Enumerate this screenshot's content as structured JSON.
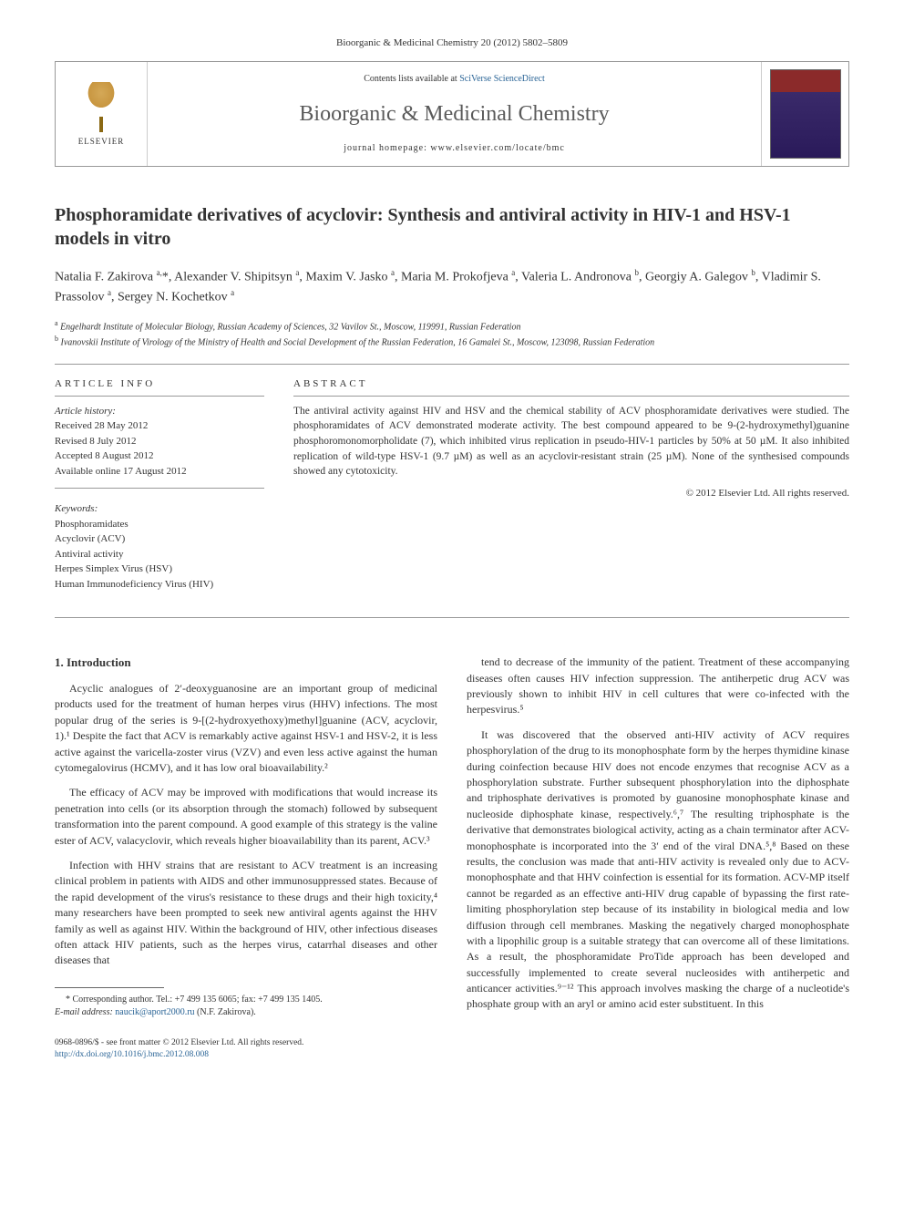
{
  "citation": "Bioorganic & Medicinal Chemistry 20 (2012) 5802–5809",
  "header": {
    "contents_prefix": "Contents lists available at ",
    "contents_link": "SciVerse ScienceDirect",
    "journal_name": "Bioorganic & Medicinal Chemistry",
    "homepage_prefix": "journal homepage: ",
    "homepage_url": "www.elsevier.com/locate/bmc",
    "publisher": "ELSEVIER"
  },
  "title": "Phosphoramidate derivatives of acyclovir: Synthesis and antiviral activity in HIV-1 and HSV-1 models in vitro",
  "authors_html": "Natalia F. Zakirova <sup>a,</sup>*, Alexander V. Shipitsyn <sup>a</sup>, Maxim V. Jasko <sup>a</sup>, Maria M. Prokofjeva <sup>a</sup>, Valeria L. Andronova <sup>b</sup>, Georgiy A. Galegov <sup>b</sup>, Vladimir S. Prassolov <sup>a</sup>, Sergey N. Kochetkov <sup>a</sup>",
  "affiliations": {
    "a": "Engelhardt Institute of Molecular Biology, Russian Academy of Sciences, 32 Vavilov St., Moscow, 119991, Russian Federation",
    "b": "Ivanovskii Institute of Virology of the Ministry of Health and Social Development of the Russian Federation, 16 Gamalei St., Moscow, 123098, Russian Federation"
  },
  "info": {
    "label": "ARTICLE INFO",
    "history_label": "Article history:",
    "received": "Received 28 May 2012",
    "revised": "Revised 8 July 2012",
    "accepted": "Accepted 8 August 2012",
    "online": "Available online 17 August 2012",
    "keywords_label": "Keywords:",
    "keywords": [
      "Phosphoramidates",
      "Acyclovir (ACV)",
      "Antiviral activity",
      "Herpes Simplex Virus (HSV)",
      "Human Immunodeficiency Virus (HIV)"
    ]
  },
  "abstract": {
    "label": "ABSTRACT",
    "text": "The antiviral activity against HIV and HSV and the chemical stability of ACV phosphoramidate derivatives were studied. The phosphoramidates of ACV demonstrated moderate activity. The best compound appeared to be 9-(2-hydroxymethyl)guanine phosphoromonomorpholidate (7), which inhibited virus replication in pseudo-HIV-1 particles by 50% at 50 µM. It also inhibited replication of wild-type HSV-1 (9.7 µM) as well as an acyclovir-resistant strain (25 µM). None of the synthesised compounds showed any cytotoxicity.",
    "copyright": "© 2012 Elsevier Ltd. All rights reserved."
  },
  "body": {
    "section_heading": "1. Introduction",
    "col1": [
      "Acyclic analogues of 2′-deoxyguanosine are an important group of medicinal products used for the treatment of human herpes virus (HHV) infections. The most popular drug of the series is 9-[(2-hydroxyethoxy)methyl]guanine (ACV, acyclovir, 1).¹ Despite the fact that ACV is remarkably active against HSV-1 and HSV-2, it is less active against the varicella-zoster virus (VZV) and even less active against the human cytomegalovirus (HCMV), and it has low oral bioavailability.²",
      "The efficacy of ACV may be improved with modifications that would increase its penetration into cells (or its absorption through the stomach) followed by subsequent transformation into the parent compound. A good example of this strategy is the valine ester of ACV, valacyclovir, which reveals higher bioavailability than its parent, ACV.³",
      "Infection with HHV strains that are resistant to ACV treatment is an increasing clinical problem in patients with AIDS and other immunosuppressed states. Because of the rapid development of the virus's resistance to these drugs and their high toxicity,⁴ many researchers have been prompted to seek new antiviral agents against the HHV family as well as against HIV. Within the background of HIV, other infectious diseases often attack HIV patients, such as the herpes virus, catarrhal diseases and other diseases that"
    ],
    "col2": [
      "tend to decrease of the immunity of the patient. Treatment of these accompanying diseases often causes HIV infection suppression. The antiherpetic drug ACV was previously shown to inhibit HIV in cell cultures that were co-infected with the herpesvirus.⁵",
      "It was discovered that the observed anti-HIV activity of ACV requires phosphorylation of the drug to its monophosphate form by the herpes thymidine kinase during coinfection because HIV does not encode enzymes that recognise ACV as a phosphorylation substrate. Further subsequent phosphorylation into the diphosphate and triphosphate derivatives is promoted by guanosine monophosphate kinase and nucleoside diphosphate kinase, respectively.⁶,⁷ The resulting triphosphate is the derivative that demonstrates biological activity, acting as a chain terminator after ACV-monophosphate is incorporated into the 3′ end of the viral DNA.⁵,⁸ Based on these results, the conclusion was made that anti-HIV activity is revealed only due to ACV-monophosphate and that HHV coinfection is essential for its formation. ACV-MP itself cannot be regarded as an effective anti-HIV drug capable of bypassing the first rate-limiting phosphorylation step because of its instability in biological media and low diffusion through cell membranes. Masking the negatively charged monophosphate with a lipophilic group is a suitable strategy that can overcome all of these limitations. As a result, the phosphoramidate ProTide approach has been developed and successfully implemented to create several nucleosides with antiherpetic and anticancer activities.⁹⁻¹² This approach involves masking the charge of a nucleotide's phosphate group with an aryl or amino acid ester substituent. In this"
    ]
  },
  "footnote": {
    "corr": "* Corresponding author. Tel.: +7 499 135 6065; fax: +7 499 135 1405.",
    "email_label": "E-mail address:",
    "email": "naucik@aport2000.ru",
    "email_name": "(N.F. Zakirova)."
  },
  "footer": {
    "line1": "0968-0896/$ - see front matter © 2012 Elsevier Ltd. All rights reserved.",
    "doi": "http://dx.doi.org/10.1016/j.bmc.2012.08.008"
  }
}
